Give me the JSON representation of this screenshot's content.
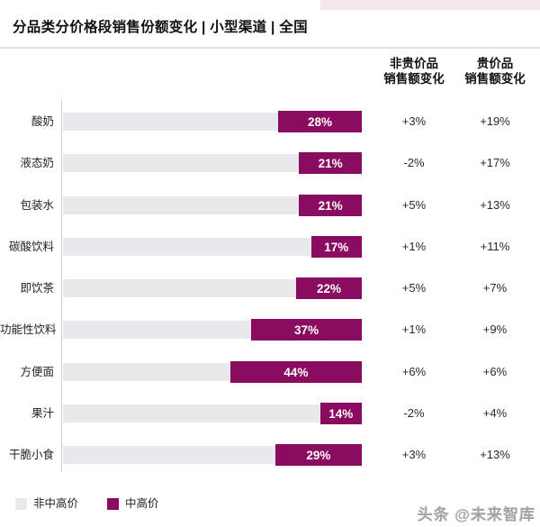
{
  "title": "分品类分价格段销售份额变化 | 小型渠道 | 全国",
  "col_headers": [
    {
      "line1": "非贵价品",
      "line2": "销售额变化"
    },
    {
      "line1": "贵价品",
      "line2": "销售额变化"
    }
  ],
  "chart_data": {
    "type": "bar",
    "orientation": "horizontal-stacked",
    "title": "分品类分价格段销售份额变化 | 小型渠道 | 全国",
    "categories": [
      "酸奶",
      "液态奶",
      "包装水",
      "碳酸饮料",
      "即饮茶",
      "功能性饮料",
      "方便面",
      "果汁",
      "干脆小食"
    ],
    "series": [
      {
        "name": "中高价份额",
        "unit": "%",
        "values": [
          28,
          21,
          21,
          17,
          22,
          37,
          44,
          14,
          29
        ]
      },
      {
        "name": "非贵价品销售额变化",
        "values": [
          "+3%",
          "-2%",
          "+5%",
          "+1%",
          "+5%",
          "+1%",
          "+6%",
          "-2%",
          "+3%"
        ]
      },
      {
        "name": "贵价品销售额变化",
        "values": [
          "+19%",
          "+17%",
          "+13%",
          "+11%",
          "+7%",
          "+9%",
          "+6%",
          "+4%",
          "+13%"
        ]
      }
    ],
    "bar_labels": [
      "28%",
      "21%",
      "21%",
      "17%",
      "22%",
      "37%",
      "44%",
      "14%",
      "29%"
    ],
    "xlim": [
      0,
      100
    ],
    "grid": false,
    "legend_position": "bottom-left"
  },
  "legend": [
    {
      "label": "非中高价",
      "color": "#e9e9ed"
    },
    {
      "label": "中高价",
      "color": "#8a0c61"
    }
  ],
  "footer": "头条 @未来智库",
  "colors": {
    "accent": "#8a0c61",
    "bar_bg": "#e9e9ed",
    "top_strip": "#f3e8ef",
    "axis": "#cfcfd6"
  }
}
